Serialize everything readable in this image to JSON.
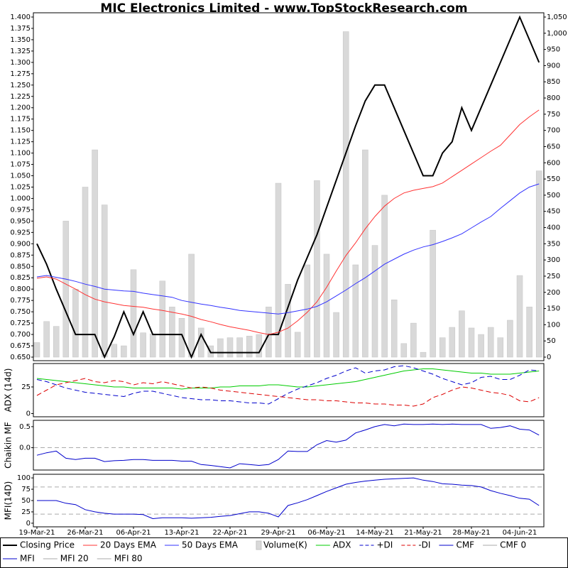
{
  "chart_data": [
    {
      "type": "line",
      "title": "MIC Electronics Limited - www.TopStockResearch.com",
      "categories": [
        "19-Mar-21",
        null,
        null,
        null,
        null,
        "26-Mar-21",
        null,
        null,
        null,
        null,
        "06-Apr-21",
        null,
        null,
        null,
        null,
        "13-Apr-21",
        null,
        null,
        null,
        null,
        "22-Apr-21",
        null,
        null,
        null,
        null,
        "29-Apr-21",
        null,
        null,
        null,
        null,
        "06-May-21",
        null,
        null,
        null,
        null,
        "14-May-21",
        null,
        null,
        null,
        null,
        "21-May-21",
        null,
        null,
        null,
        null,
        "28-May-21",
        null,
        null,
        null,
        null,
        "04-Jun-21",
        null,
        null
      ],
      "ylim": [
        0.65,
        1.4
      ],
      "yticks": [
        {
          "value": 0.65,
          "label": "0.650"
        },
        0.675,
        {
          "value": 0.7,
          "label": "0.700"
        },
        0.725,
        {
          "value": 0.75,
          "label": "0.750"
        },
        0.775,
        {
          "value": 0.8,
          "label": "0.800"
        },
        0.825,
        {
          "value": 0.85,
          "label": "0.850"
        },
        0.875,
        {
          "value": 0.9,
          "label": "0.900"
        },
        0.925,
        {
          "value": 0.95,
          "label": "0.950"
        },
        0.975,
        {
          "value": 1,
          "label": "1.000"
        },
        1.025,
        {
          "value": 1.05,
          "label": "1.050"
        },
        1.075,
        {
          "value": 1.1,
          "label": "1.100"
        },
        1.125,
        {
          "value": 1.15,
          "label": "1.150"
        },
        1.175,
        {
          "value": 1.2,
          "label": "1.200"
        },
        1.225,
        {
          "value": 1.25,
          "label": "1.250"
        },
        1.275,
        {
          "value": 1.3,
          "label": "1.300"
        },
        1.325,
        {
          "value": 1.35,
          "label": "1.350"
        },
        1.375,
        {
          "value": 1.4,
          "label": "1.400"
        }
      ],
      "y2lim": [
        0,
        1050
      ],
      "y2ticks": [
        0,
        50,
        100,
        150,
        200,
        250,
        300,
        350,
        400,
        450,
        500,
        550,
        600,
        650,
        700,
        750,
        800,
        850,
        900,
        950,
        {
          "value": 1000,
          "label": "1,000"
        },
        {
          "value": 1050,
          "label": "1,050"
        }
      ],
      "series": [
        {
          "name": "Closing Price",
          "type": "line",
          "color": "#000000",
          "width": 2,
          "values": [
            0.9,
            0.855,
            0.8,
            0.75,
            0.7,
            0.7,
            0.7,
            0.65,
            0.695,
            0.75,
            0.7,
            0.75,
            0.7,
            0.7,
            0.7,
            0.7,
            0.65,
            0.7,
            0.66,
            0.66,
            0.66,
            0.66,
            0.66,
            0.66,
            0.7,
            0.7,
            0.76,
            0.82,
            0.87,
            0.92,
            0.98,
            1.04,
            1.1,
            1.16,
            1.215,
            1.25,
            1.25,
            1.2,
            1.15,
            1.1,
            1.05,
            1.05,
            1.1,
            1.125,
            1.2,
            1.15,
            1.2,
            1.25,
            1.3,
            1.35,
            1.4,
            1.35,
            1.3
          ]
        },
        {
          "name": "20 Days EMA",
          "type": "line",
          "color": "#ff3333",
          "width": 1,
          "values": [
            0.824,
            0.827,
            0.822,
            0.811,
            0.8,
            0.788,
            0.778,
            0.772,
            0.768,
            0.764,
            0.762,
            0.76,
            0.756,
            0.753,
            0.749,
            0.745,
            0.74,
            0.733,
            0.728,
            0.722,
            0.717,
            0.713,
            0.709,
            0.704,
            0.7,
            0.705,
            0.714,
            0.73,
            0.749,
            0.772,
            0.804,
            0.84,
            0.874,
            0.902,
            0.933,
            0.96,
            0.983,
            1.0,
            1.012,
            1.018,
            1.022,
            1.026,
            1.034,
            1.048,
            1.062,
            1.076,
            1.09,
            1.104,
            1.117,
            1.14,
            1.163,
            1.18,
            1.195
          ]
        },
        {
          "name": "50 Days EMA",
          "type": "line",
          "color": "#3333ff",
          "width": 1,
          "values": [
            0.827,
            0.83,
            0.826,
            0.822,
            0.817,
            0.811,
            0.806,
            0.8,
            0.798,
            0.796,
            0.795,
            0.791,
            0.788,
            0.785,
            0.782,
            0.775,
            0.771,
            0.767,
            0.764,
            0.76,
            0.757,
            0.753,
            0.751,
            0.749,
            0.747,
            0.745,
            0.748,
            0.752,
            0.756,
            0.762,
            0.772,
            0.785,
            0.798,
            0.812,
            0.825,
            0.84,
            0.855,
            0.866,
            0.877,
            0.886,
            0.893,
            0.898,
            0.905,
            0.913,
            0.922,
            0.935,
            0.948,
            0.96,
            0.978,
            0.995,
            1.012,
            1.025,
            1.032
          ]
        },
        {
          "name": "Volume(K)",
          "type": "bar",
          "axis": "y2",
          "color": "#d9d9d9",
          "values": [
            45,
            110,
            95,
            420,
            210,
            525,
            640,
            470,
            40,
            35,
            270,
            75,
            72,
            235,
            155,
            120,
            318,
            90,
            35,
            57,
            60,
            60,
            65,
            70,
            155,
            537,
            225,
            77,
            285,
            545,
            318,
            138,
            1005,
            285,
            640,
            345,
            500,
            177,
            42,
            105,
            15,
            392,
            60,
            92,
            143,
            90,
            70,
            92,
            60,
            114,
            252,
            155,
            575
          ]
        }
      ]
    },
    {
      "type": "line",
      "ylabel": "ADX (14d)",
      "ylim": [
        -3,
        47
      ],
      "yticks": [
        0,
        25
      ],
      "series": [
        {
          "name": "ADX",
          "type": "line",
          "color": "#00cc00",
          "width": 1,
          "values": [
            33,
            32,
            31,
            30,
            29,
            28,
            27,
            26,
            25,
            25,
            24,
            24,
            24,
            24,
            24,
            23,
            24,
            24,
            24,
            25,
            25,
            26,
            26,
            26,
            27,
            27,
            26,
            25,
            25,
            26,
            27,
            28,
            29,
            30,
            32,
            34,
            36,
            38,
            40,
            41,
            42,
            42,
            41,
            40,
            39,
            38,
            38,
            37,
            37,
            37,
            38,
            39,
            40
          ]
        },
        {
          "name": "+DI",
          "type": "line",
          "color": "#0000cc",
          "width": 1,
          "dash": true,
          "values": [
            32,
            30,
            27,
            24,
            22,
            20,
            19,
            18,
            17,
            16,
            19,
            21,
            21,
            19,
            17,
            15,
            14,
            13,
            13,
            12,
            12,
            11,
            10,
            10,
            9,
            14,
            19,
            23,
            26,
            29,
            33,
            36,
            40,
            43,
            38,
            40,
            41,
            44,
            45,
            43,
            40,
            37,
            33,
            30,
            27,
            29,
            34,
            35,
            32,
            32,
            36,
            41,
            40
          ]
        },
        {
          "name": "-DI",
          "type": "line",
          "color": "#dd0000",
          "width": 1,
          "dash": true,
          "values": [
            17,
            22,
            27,
            29,
            31,
            33,
            30,
            29,
            31,
            30,
            27,
            29,
            28,
            30,
            28,
            26,
            24,
            25,
            24,
            22,
            21,
            20,
            19,
            18,
            17,
            16,
            15,
            14,
            13,
            13,
            12,
            12,
            11,
            10,
            10,
            9,
            9,
            8,
            8,
            7,
            9,
            15,
            18,
            22,
            25,
            24,
            22,
            20,
            19,
            17,
            12,
            11,
            15
          ]
        }
      ]
    },
    {
      "type": "line",
      "ylabel": "Chaikin MF",
      "ylim": [
        -0.53,
        0.65
      ],
      "yticks": [
        {
          "value": 0,
          "label": "0.0"
        },
        0.5
      ],
      "series": [
        {
          "name": "CMF",
          "type": "line",
          "color": "#0000cc",
          "width": 1,
          "values": [
            -0.18,
            -0.12,
            -0.08,
            -0.25,
            -0.28,
            -0.25,
            -0.25,
            -0.33,
            -0.31,
            -0.3,
            -0.28,
            -0.28,
            -0.3,
            -0.3,
            -0.3,
            -0.32,
            -0.32,
            -0.4,
            -0.42,
            -0.45,
            -0.48,
            -0.38,
            -0.4,
            -0.42,
            -0.4,
            -0.28,
            -0.08,
            -0.09,
            -0.09,
            0.07,
            0.17,
            0.13,
            0.18,
            0.35,
            0.42,
            0.5,
            0.55,
            0.52,
            0.56,
            0.55,
            0.55,
            0.56,
            0.55,
            0.56,
            0.55,
            0.55,
            0.55,
            0.46,
            0.48,
            0.52,
            0.44,
            0.42,
            0.3
          ]
        }
      ],
      "reference_lines": [
        {
          "name": "CMF 0",
          "value": 0,
          "color": "#aaaaaa"
        }
      ]
    },
    {
      "type": "line",
      "ylabel": "MFI(14D)",
      "ylim": [
        -8,
        108
      ],
      "yticks": [
        0,
        25,
        50,
        75,
        100
      ],
      "series": [
        {
          "name": "MFI",
          "type": "line",
          "color": "#0000cc",
          "width": 1,
          "values": [
            50,
            50,
            50,
            44,
            41,
            30,
            25,
            22,
            20,
            20,
            20,
            19,
            10,
            12,
            12,
            12,
            11,
            12,
            13,
            15,
            17,
            21,
            25,
            25,
            22,
            14,
            39,
            45,
            52,
            61,
            70,
            78,
            86,
            90,
            93,
            95,
            97,
            98,
            99,
            100,
            95,
            92,
            87,
            86,
            84,
            83,
            80,
            72,
            66,
            61,
            55,
            53,
            39
          ]
        }
      ],
      "reference_lines": [
        {
          "name": "MFI 20",
          "value": 20,
          "color": "#aaaaaa"
        },
        {
          "name": "MFI 80",
          "value": 80,
          "color": "#aaaaaa"
        }
      ]
    }
  ]
}
